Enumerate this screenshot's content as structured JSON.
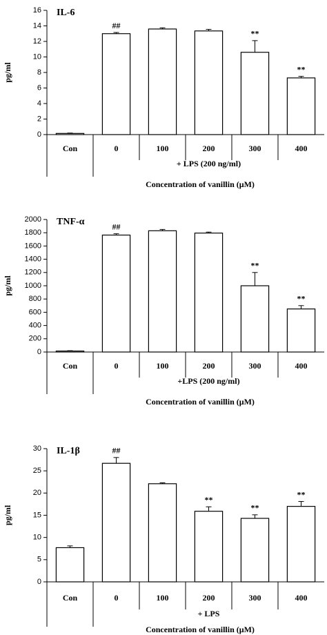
{
  "chart_data": [
    {
      "type": "bar",
      "title": "IL-6",
      "y_label": "pg/ml",
      "group_label": "+ LPS (200 ng/ml)",
      "x_label": "Concentration of vanillin (μM)",
      "categories": [
        "Con",
        "0",
        "100",
        "200",
        "300",
        "400"
      ],
      "values": [
        0.15,
        13.0,
        13.6,
        13.35,
        10.6,
        7.3
      ],
      "errors": [
        0.05,
        0.15,
        0.15,
        0.2,
        1.5,
        0.2
      ],
      "annotations": [
        null,
        "##",
        null,
        null,
        "**",
        "**"
      ],
      "color": "#ffffff",
      "ylim": [
        0,
        16
      ],
      "yticks": [
        0,
        2,
        4,
        6,
        8,
        10,
        12,
        14,
        16
      ]
    },
    {
      "type": "bar",
      "title": "TNF-α",
      "y_label": "pg/ml",
      "group_label": "+LPS (200 ng/ml)",
      "x_label": "Concentration of vanillin (μM)",
      "categories": [
        "Con",
        "0",
        "100",
        "200",
        "300",
        "400"
      ],
      "values": [
        15,
        1765,
        1830,
        1795,
        1000,
        650
      ],
      "errors": [
        5,
        20,
        20,
        15,
        200,
        50
      ],
      "annotations": [
        null,
        "##",
        null,
        null,
        "**",
        "**"
      ],
      "color": "#ffffff",
      "ylim": [
        0,
        2000
      ],
      "yticks": [
        0,
        200,
        400,
        600,
        800,
        1000,
        1200,
        1400,
        1600,
        1800,
        2000
      ]
    },
    {
      "type": "bar",
      "title": "IL-1β",
      "y_label": "pg/ml",
      "group_label": "+ LPS",
      "x_label": "Concentration of vanillin (μM)",
      "categories": [
        "Con",
        "0",
        "100",
        "200",
        "300",
        "400"
      ],
      "values": [
        7.7,
        26.7,
        22.1,
        15.9,
        14.3,
        17.0
      ],
      "errors": [
        0.4,
        1.3,
        0.2,
        1.0,
        0.8,
        1.1
      ],
      "annotations": [
        null,
        "##",
        null,
        "**",
        "**",
        "**"
      ],
      "color": "#ffffff",
      "ylim": [
        0,
        30
      ],
      "yticks": [
        0,
        5,
        10,
        15,
        20,
        25,
        30
      ]
    }
  ]
}
